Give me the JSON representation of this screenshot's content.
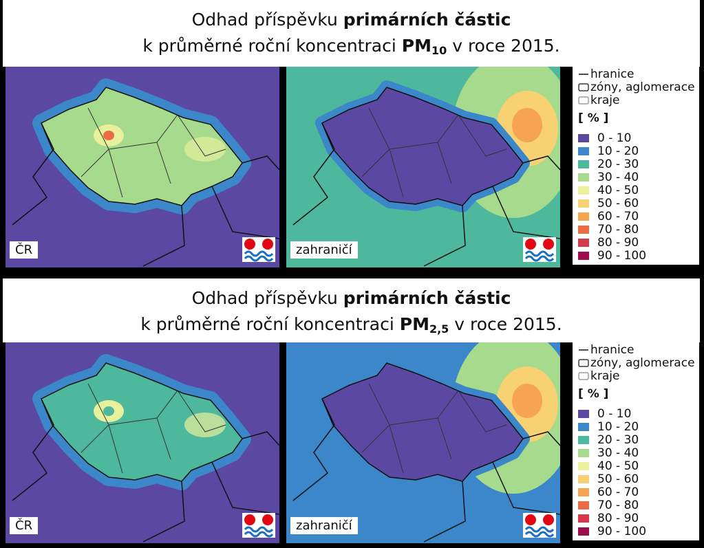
{
  "panels": [
    {
      "title_line1_regular": "Odhad příspěvku",
      "title_line1_bold": "primárních částic",
      "title_line2_regular": "k průměrné roční koncentraci",
      "title_pollutant": "PM",
      "title_pollutant_sub": "10",
      "title_line2_end": "v roce 2015.",
      "map_labels": [
        "ČR",
        "zahraničí"
      ],
      "legend": {
        "lines": [
          "hranice",
          "zóny, aglomerace",
          "kraje"
        ],
        "unit": "[ % ]",
        "classes": [
          {
            "label": "0 - 10",
            "color": "#5b48a3"
          },
          {
            "label": "10 - 20",
            "color": "#3b87c9"
          },
          {
            "label": "20 - 30",
            "color": "#4db89b"
          },
          {
            "label": "30 - 40",
            "color": "#a6da8c"
          },
          {
            "label": "40 - 50",
            "color": "#e8f09c"
          },
          {
            "label": "50 - 60",
            "color": "#f8d272"
          },
          {
            "label": "60 - 70",
            "color": "#f6a352"
          },
          {
            "label": "70 - 80",
            "color": "#ec6b42"
          },
          {
            "label": "80 - 90",
            "color": "#d43b4a"
          },
          {
            "label": "90 - 100",
            "color": "#9c0f4c"
          }
        ]
      }
    },
    {
      "title_line1_regular": "Odhad příspěvku",
      "title_line1_bold": "primárních částic",
      "title_line2_regular": "k průměrné roční koncentraci",
      "title_pollutant": "PM",
      "title_pollutant_sub": "2,5",
      "title_line2_end": "v roce 2015.",
      "map_labels": [
        "ČR",
        "zahraničí"
      ],
      "legend": {
        "lines": [
          "hranice",
          "zóny, aglomerace",
          "kraje"
        ],
        "unit": "[ % ]",
        "classes": [
          {
            "label": "0 - 10",
            "color": "#5b48a3"
          },
          {
            "label": "10 - 20",
            "color": "#3b87c9"
          },
          {
            "label": "20 - 30",
            "color": "#4db89b"
          },
          {
            "label": "30 - 40",
            "color": "#a6da8c"
          },
          {
            "label": "40 - 50",
            "color": "#e8f09c"
          },
          {
            "label": "50 - 60",
            "color": "#f8d272"
          },
          {
            "label": "60 - 70",
            "color": "#f6a352"
          },
          {
            "label": "70 - 80",
            "color": "#ec6b42"
          },
          {
            "label": "80 - 90",
            "color": "#d43b4a"
          },
          {
            "label": "90 - 100",
            "color": "#9c0f4c"
          }
        ]
      }
    }
  ]
}
